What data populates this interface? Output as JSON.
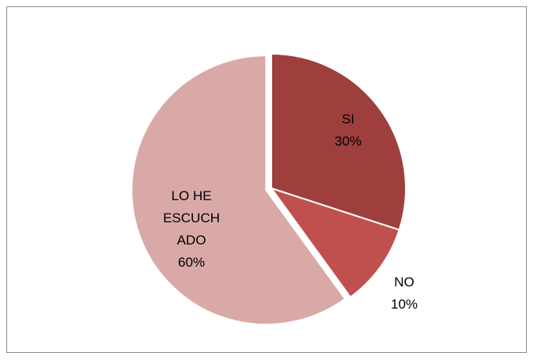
{
  "chart_data": {
    "type": "pie",
    "categories": [
      "SI",
      "NO",
      "LO HE ESCUCHADO"
    ],
    "values": [
      30,
      10,
      60
    ],
    "value_labels": [
      "30%",
      "10%",
      "60%"
    ],
    "colors": [
      "#9e3f3e",
      "#c0504d",
      "#d9a9a8"
    ]
  }
}
